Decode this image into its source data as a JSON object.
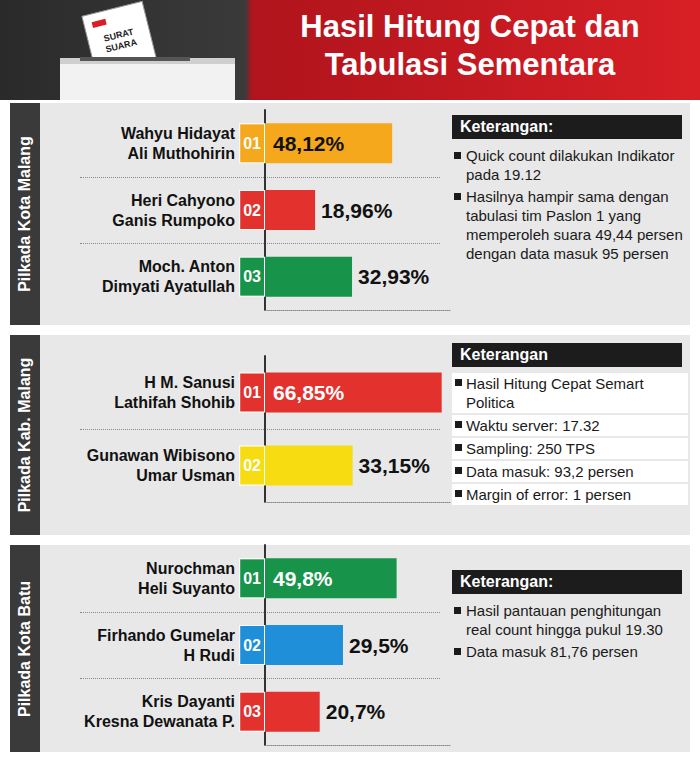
{
  "header": {
    "title": "Hasil Hitung Cepat dan Tabulasi Sementara",
    "ballot_label": "SURAT SUARA"
  },
  "chart_data": [
    {
      "type": "bar",
      "orientation": "horizontal",
      "title": "Pilkada Kota Malang",
      "categories": [
        "Wahyu Hidayat\nAli Muthohirin",
        "Heri Cahyono\nGanis Rumpoko",
        "Moch. Anton\nDimyati Ayatullah"
      ],
      "candidate_numbers": [
        "01",
        "02",
        "03"
      ],
      "values": [
        48.12,
        18.96,
        32.93
      ],
      "value_labels": [
        "48,12%",
        "18,96%",
        "32,93%"
      ],
      "colors": [
        "#f5a81c",
        "#e3312d",
        "#17944a"
      ],
      "xlim": [
        0,
        70
      ],
      "tick_labels": false,
      "grid": false,
      "data_labels": true,
      "annotations": {
        "heading": "Keterangan:",
        "items": [
          "Quick count dilakukan Indikator pada 19.12",
          "Hasilnya hampir sama dengan tabulasi tim Paslon 1 yang memperoleh suara 49,44 persen dengan data masuk 95 persen"
        ]
      }
    },
    {
      "type": "bar",
      "orientation": "horizontal",
      "title": "Pilkada Kab. Malang",
      "categories": [
        "H M. Sanusi\nLathifah Shohib",
        "Gunawan Wibisono\nUmar Usman"
      ],
      "candidate_numbers": [
        "01",
        "02"
      ],
      "values": [
        66.85,
        33.15
      ],
      "value_labels": [
        "66,85%",
        "33,15%"
      ],
      "colors": [
        "#e3312d",
        "#f6dc10"
      ],
      "xlim": [
        0,
        70
      ],
      "tick_labels": false,
      "grid": false,
      "data_labels": true,
      "annotations": {
        "heading": "Keterangan",
        "items": [
          "Hasil Hitung Cepat Semart Politica",
          "Waktu server: 17.32",
          "Sampling: 250 TPS",
          "Data masuk: 93,2 persen",
          "Margin of error: 1 persen"
        ]
      }
    },
    {
      "type": "bar",
      "orientation": "horizontal",
      "title": "Pilkada Kota Batu",
      "categories": [
        "Nurochman\nHeli Suyanto",
        "Firhando Gumelar\nH Rudi",
        "Kris Dayanti\nKresna Dewanata P."
      ],
      "candidate_numbers": [
        "01",
        "02",
        "03"
      ],
      "values": [
        49.8,
        29.5,
        20.7
      ],
      "value_labels": [
        "49,8%",
        "29,5%",
        "20,7%"
      ],
      "colors": [
        "#17944a",
        "#1e8fd8",
        "#e3312d"
      ],
      "xlim": [
        0,
        70
      ],
      "tick_labels": false,
      "grid": false,
      "data_labels": true,
      "annotations": {
        "heading": "Keterangan:",
        "items": [
          "Hasil pantauan penghitungan real count hingga pukul 19.30",
          "Data masuk 81,76 persen"
        ]
      }
    }
  ]
}
